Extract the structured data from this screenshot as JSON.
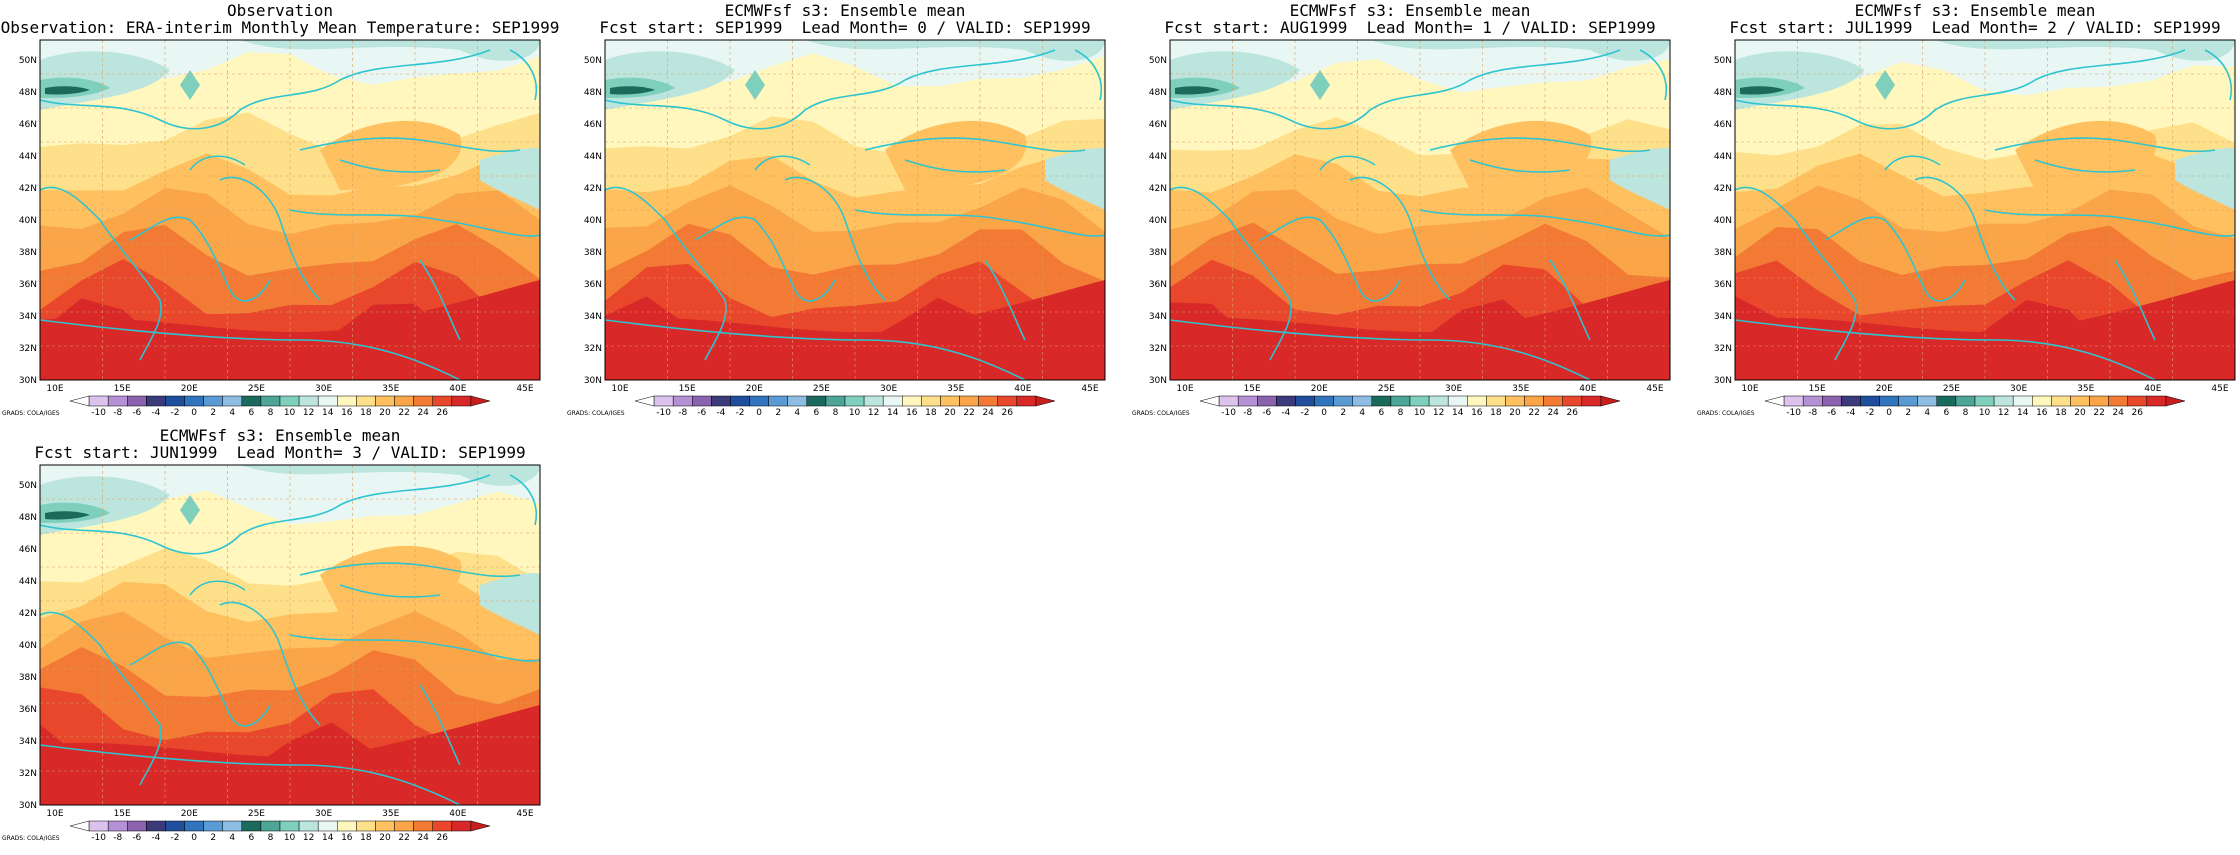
{
  "colors": {
    "scale": [
      "#ffffff",
      "#dcc3ee",
      "#b690d4",
      "#8a62ad",
      "#3b3a7a",
      "#1f4f9c",
      "#2f74bd",
      "#5a9bd3",
      "#8dbde3",
      "#1a6b5c",
      "#4ca596",
      "#7fcfbd",
      "#bce5de",
      "#e9f7f4",
      "#fff7bd",
      "#ffe08a",
      "#ffc060",
      "#fba549",
      "#f27a35",
      "#e8472b",
      "#d92828",
      "#c81e1e"
    ],
    "coast": "#2ec4d0",
    "grid": "#d8a060"
  },
  "axes": {
    "lat_labels": [
      "50N",
      "48N",
      "46N",
      "44N",
      "42N",
      "40N",
      "38N",
      "36N",
      "34N",
      "32N",
      "30N"
    ],
    "lon_labels": [
      "10E",
      "15E",
      "20E",
      "25E",
      "30E",
      "35E",
      "40E",
      "45E"
    ]
  },
  "colorbar": {
    "labels": [
      "-10",
      "-8",
      "-6",
      "-4",
      "-2",
      "0",
      "2",
      "4",
      "6",
      "8",
      "10",
      "12",
      "14",
      "16",
      "18",
      "20",
      "22",
      "24",
      "26"
    ],
    "credit": "GRADS: COLA/IGES"
  },
  "panels": [
    {
      "id": "obs",
      "title1": "Observation",
      "title2": "Observation: ERA-interim Monthly Mean Temperature: SEP1999",
      "variant": 0
    },
    {
      "id": "lead0",
      "title1": "ECMWFsf s3: Ensemble mean",
      "title2": "Fcst start: SEP1999  Lead Month= 0 / VALID: SEP1999",
      "variant": 1
    },
    {
      "id": "lead1",
      "title1": "ECMWFsf s3: Ensemble mean",
      "title2": "Fcst start: AUG1999  Lead Month= 1 / VALID: SEP1999",
      "variant": 2
    },
    {
      "id": "lead2",
      "title1": "ECMWFsf s3: Ensemble mean",
      "title2": "Fcst start: JUL1999  Lead Month= 2 / VALID: SEP1999",
      "variant": 3
    },
    {
      "id": "lead3",
      "title1": "ECMWFsf s3: Ensemble mean",
      "title2": "Fcst start: JUN1999  Lead Month= 3 / VALID: SEP1999",
      "variant": 4
    }
  ]
}
